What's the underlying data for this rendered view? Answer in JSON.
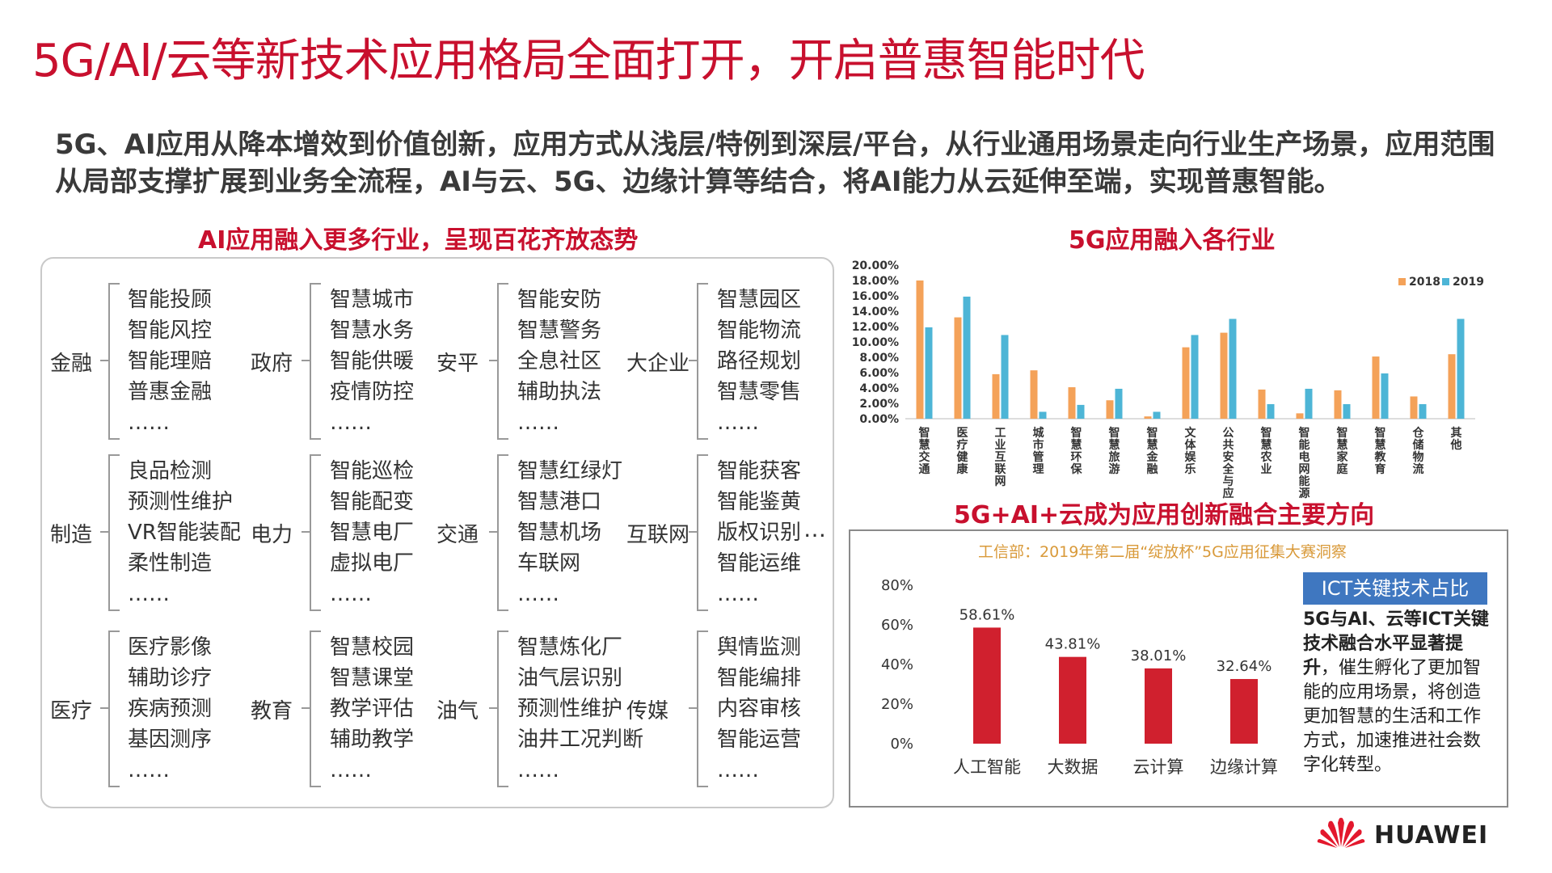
{
  "title": "5G/AI/云等新技术应用格局全面打开，开启普惠智能时代",
  "subtitle": "5G、AI应用从降本增效到价值创新，应用方式从浅层/特例到深层/平台，从行业通用场景走向行业生产场景，应用范围从局部支撑扩展到业务全流程，AI与云、5G、边缘计算等结合，将AI能力从云延伸至端，实现普惠智能。",
  "ai_section": {
    "title": "AI应用融入更多行业，呈现百花齐放态势",
    "more": "…",
    "groups": [
      {
        "label": "金融",
        "items": [
          "智能投顾",
          "智能风控",
          "智能理赔",
          "普惠金融",
          "……"
        ]
      },
      {
        "label": "政府",
        "items": [
          "智慧城市",
          "智慧水务",
          "智能供暖",
          "疫情防控",
          "……"
        ]
      },
      {
        "label": "安平",
        "items": [
          "智能安防",
          "智慧警务",
          "全息社区",
          "辅助执法",
          "……"
        ]
      },
      {
        "label": "大企业",
        "items": [
          "智慧园区",
          "智能物流",
          "路径规划",
          "智慧零售",
          "……"
        ]
      },
      {
        "label": "制造",
        "items": [
          "良品检测",
          "预测性维护",
          "VR智能装配",
          "柔性制造",
          "……"
        ]
      },
      {
        "label": "电力",
        "items": [
          "智能巡检",
          "智能配变",
          "智慧电厂",
          "虚拟电厂",
          "……"
        ]
      },
      {
        "label": "交通",
        "items": [
          "智慧红绿灯",
          "智慧港口",
          "智慧机场",
          "车联网",
          "……"
        ]
      },
      {
        "label": "互联网",
        "items": [
          "智能获客",
          "智能鉴黄",
          "版权识别",
          "智能运维",
          "……"
        ]
      },
      {
        "label": "医疗",
        "items": [
          "医疗影像",
          "辅助诊疗",
          "疾病预测",
          "基因测序",
          "……"
        ]
      },
      {
        "label": "教育",
        "items": [
          "智慧校园",
          "智慧课堂",
          "教学评估",
          "辅助教学",
          "……"
        ]
      },
      {
        "label": "油气",
        "items": [
          "智慧炼化厂",
          "油气层识别",
          "预测性维护",
          "油井工况判断",
          "……"
        ]
      },
      {
        "label": "传媒",
        "items": [
          "舆情监测",
          "智能编排",
          "内容审核",
          "智能运营",
          "……"
        ]
      }
    ]
  },
  "chart_data": [
    {
      "type": "bar",
      "title": "5G应用融入各行业",
      "categories": [
        "智慧交通",
        "医疗健康",
        "工业互联网",
        "城市管理",
        "智慧环保",
        "智慧旅游",
        "智慧金融",
        "文体娱乐",
        "公共安全与应",
        "智慧农业",
        "智能电网能源",
        "智慧家庭",
        "智慧教育",
        "仓储物流",
        "其他"
      ],
      "series": [
        {
          "name": "2018",
          "values": [
            18.0,
            13.2,
            5.8,
            6.3,
            4.1,
            2.4,
            0.3,
            9.3,
            11.2,
            3.8,
            0.7,
            3.7,
            8.1,
            2.9,
            8.4
          ]
        },
        {
          "name": "2019",
          "values": [
            11.9,
            15.9,
            10.9,
            0.9,
            1.8,
            3.9,
            0.9,
            10.9,
            13.0,
            1.9,
            3.9,
            1.9,
            5.9,
            1.9,
            13.0
          ]
        }
      ],
      "yticks": [
        "0.00%",
        "2.00%",
        "4.00%",
        "6.00%",
        "8.00%",
        "10.00%",
        "12.00%",
        "14.00%",
        "16.00%",
        "18.00%",
        "20.00%"
      ],
      "ylim": [
        0,
        20
      ],
      "legend": "top-right",
      "colors": {
        "2018": "#f4a259",
        "2019": "#4db5d6"
      }
    },
    {
      "type": "bar",
      "title": "5G+AI+云成为应用创新融合主要方向",
      "subtitle": "工信部：2019年第二届“绽放杯”5G应用征集大赛洞察",
      "categories": [
        "人工智能",
        "大数据",
        "云计算",
        "边缘计算"
      ],
      "values": [
        58.61,
        43.81,
        38.01,
        32.64
      ],
      "data_labels": [
        "58.61%",
        "43.81%",
        "38.01%",
        "32.64%"
      ],
      "yticks": [
        "0%",
        "20%",
        "40%",
        "60%",
        "80%"
      ],
      "ylim": [
        0,
        80
      ],
      "color": "#d0202e"
    }
  ],
  "ict": {
    "tag": "ICT关键技术占比",
    "desc_bold": "5G与AI、云等ICT关键技术融合水平显著提升",
    "desc_rest": "，催生孵化了更加智能的应用场景，将创造更加智慧的生活和工作方式，加速推进社会数字化转型。"
  },
  "brand": "HUAWEI"
}
